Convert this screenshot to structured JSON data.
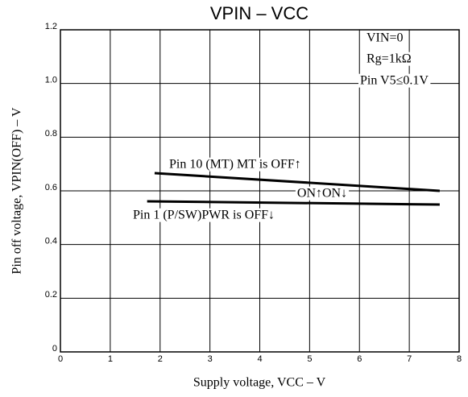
{
  "chart_data": {
    "type": "line",
    "title": "VPIN – VCC",
    "x_label": "Supply voltage, VCC – V",
    "y_label": "Pin off voltage, VPIN(OFF) – V",
    "series": [
      {
        "name": "Pin 10 (MT) MT is OFF↑",
        "color": "#000000",
        "x": [
          1.89,
          7.61
        ],
        "values": [
          0.666,
          0.6
        ]
      },
      {
        "name": "Pin 1 (P/SW)PWR is OFF↓",
        "color": "#000000",
        "x": [
          1.74,
          7.61
        ],
        "values": [
          0.561,
          0.549
        ]
      }
    ],
    "annotations": [
      "VIN=0",
      "Rg=1kΩ",
      "Pin V5≤0.1V",
      "ON↑ON↓"
    ],
    "xlim": [
      0,
      8
    ],
    "xticks": [
      0,
      1,
      2,
      3,
      4,
      5,
      6,
      7,
      8
    ],
    "ylim": [
      0,
      1.2
    ],
    "yticks": [
      0,
      0.2,
      0.4,
      0.6,
      0.8,
      {
        "value": 1,
        "label": "1.0"
      },
      1.2
    ],
    "grid": true
  }
}
